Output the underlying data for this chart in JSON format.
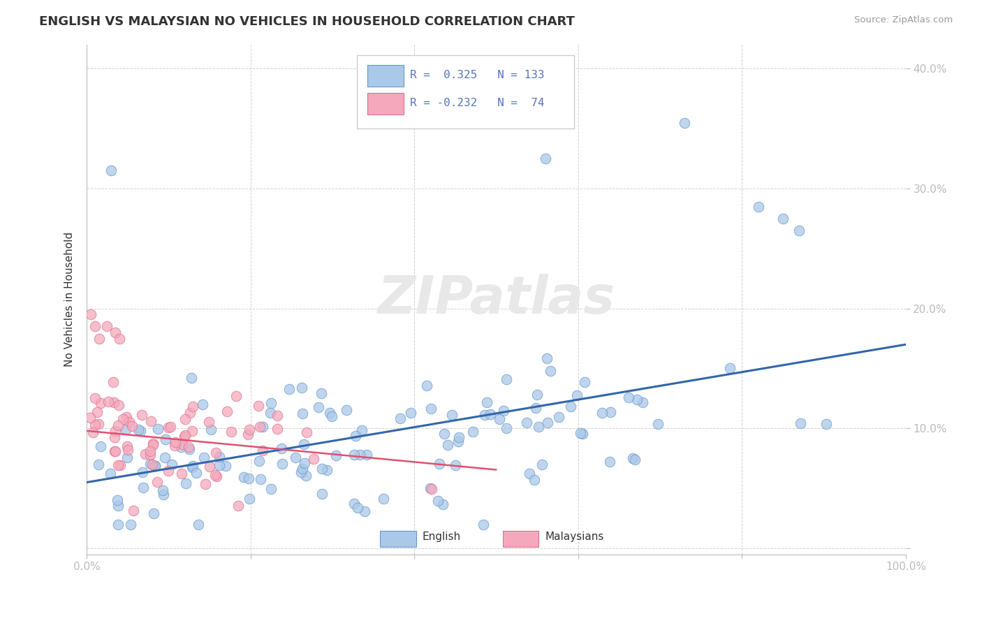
{
  "title": "ENGLISH VS MALAYSIAN NO VEHICLES IN HOUSEHOLD CORRELATION CHART",
  "source": "Source: ZipAtlas.com",
  "ylabel": "No Vehicles in Household",
  "xlim": [
    0,
    1.0
  ],
  "ylim": [
    -0.005,
    0.42
  ],
  "english_R": 0.325,
  "english_N": 133,
  "malaysian_R": -0.232,
  "malaysian_N": 74,
  "english_color": "#aac8e8",
  "malaysian_color": "#f5a8bc",
  "english_edge_color": "#6699cc",
  "malaysian_edge_color": "#e07090",
  "english_line_color": "#3366aa",
  "malaysian_line_color": "#e05070",
  "background_color": "#ffffff",
  "grid_color": "#cccccc",
  "title_fontsize": 13,
  "axis_tick_color": "#5577bb",
  "watermark": "ZIPatlas"
}
